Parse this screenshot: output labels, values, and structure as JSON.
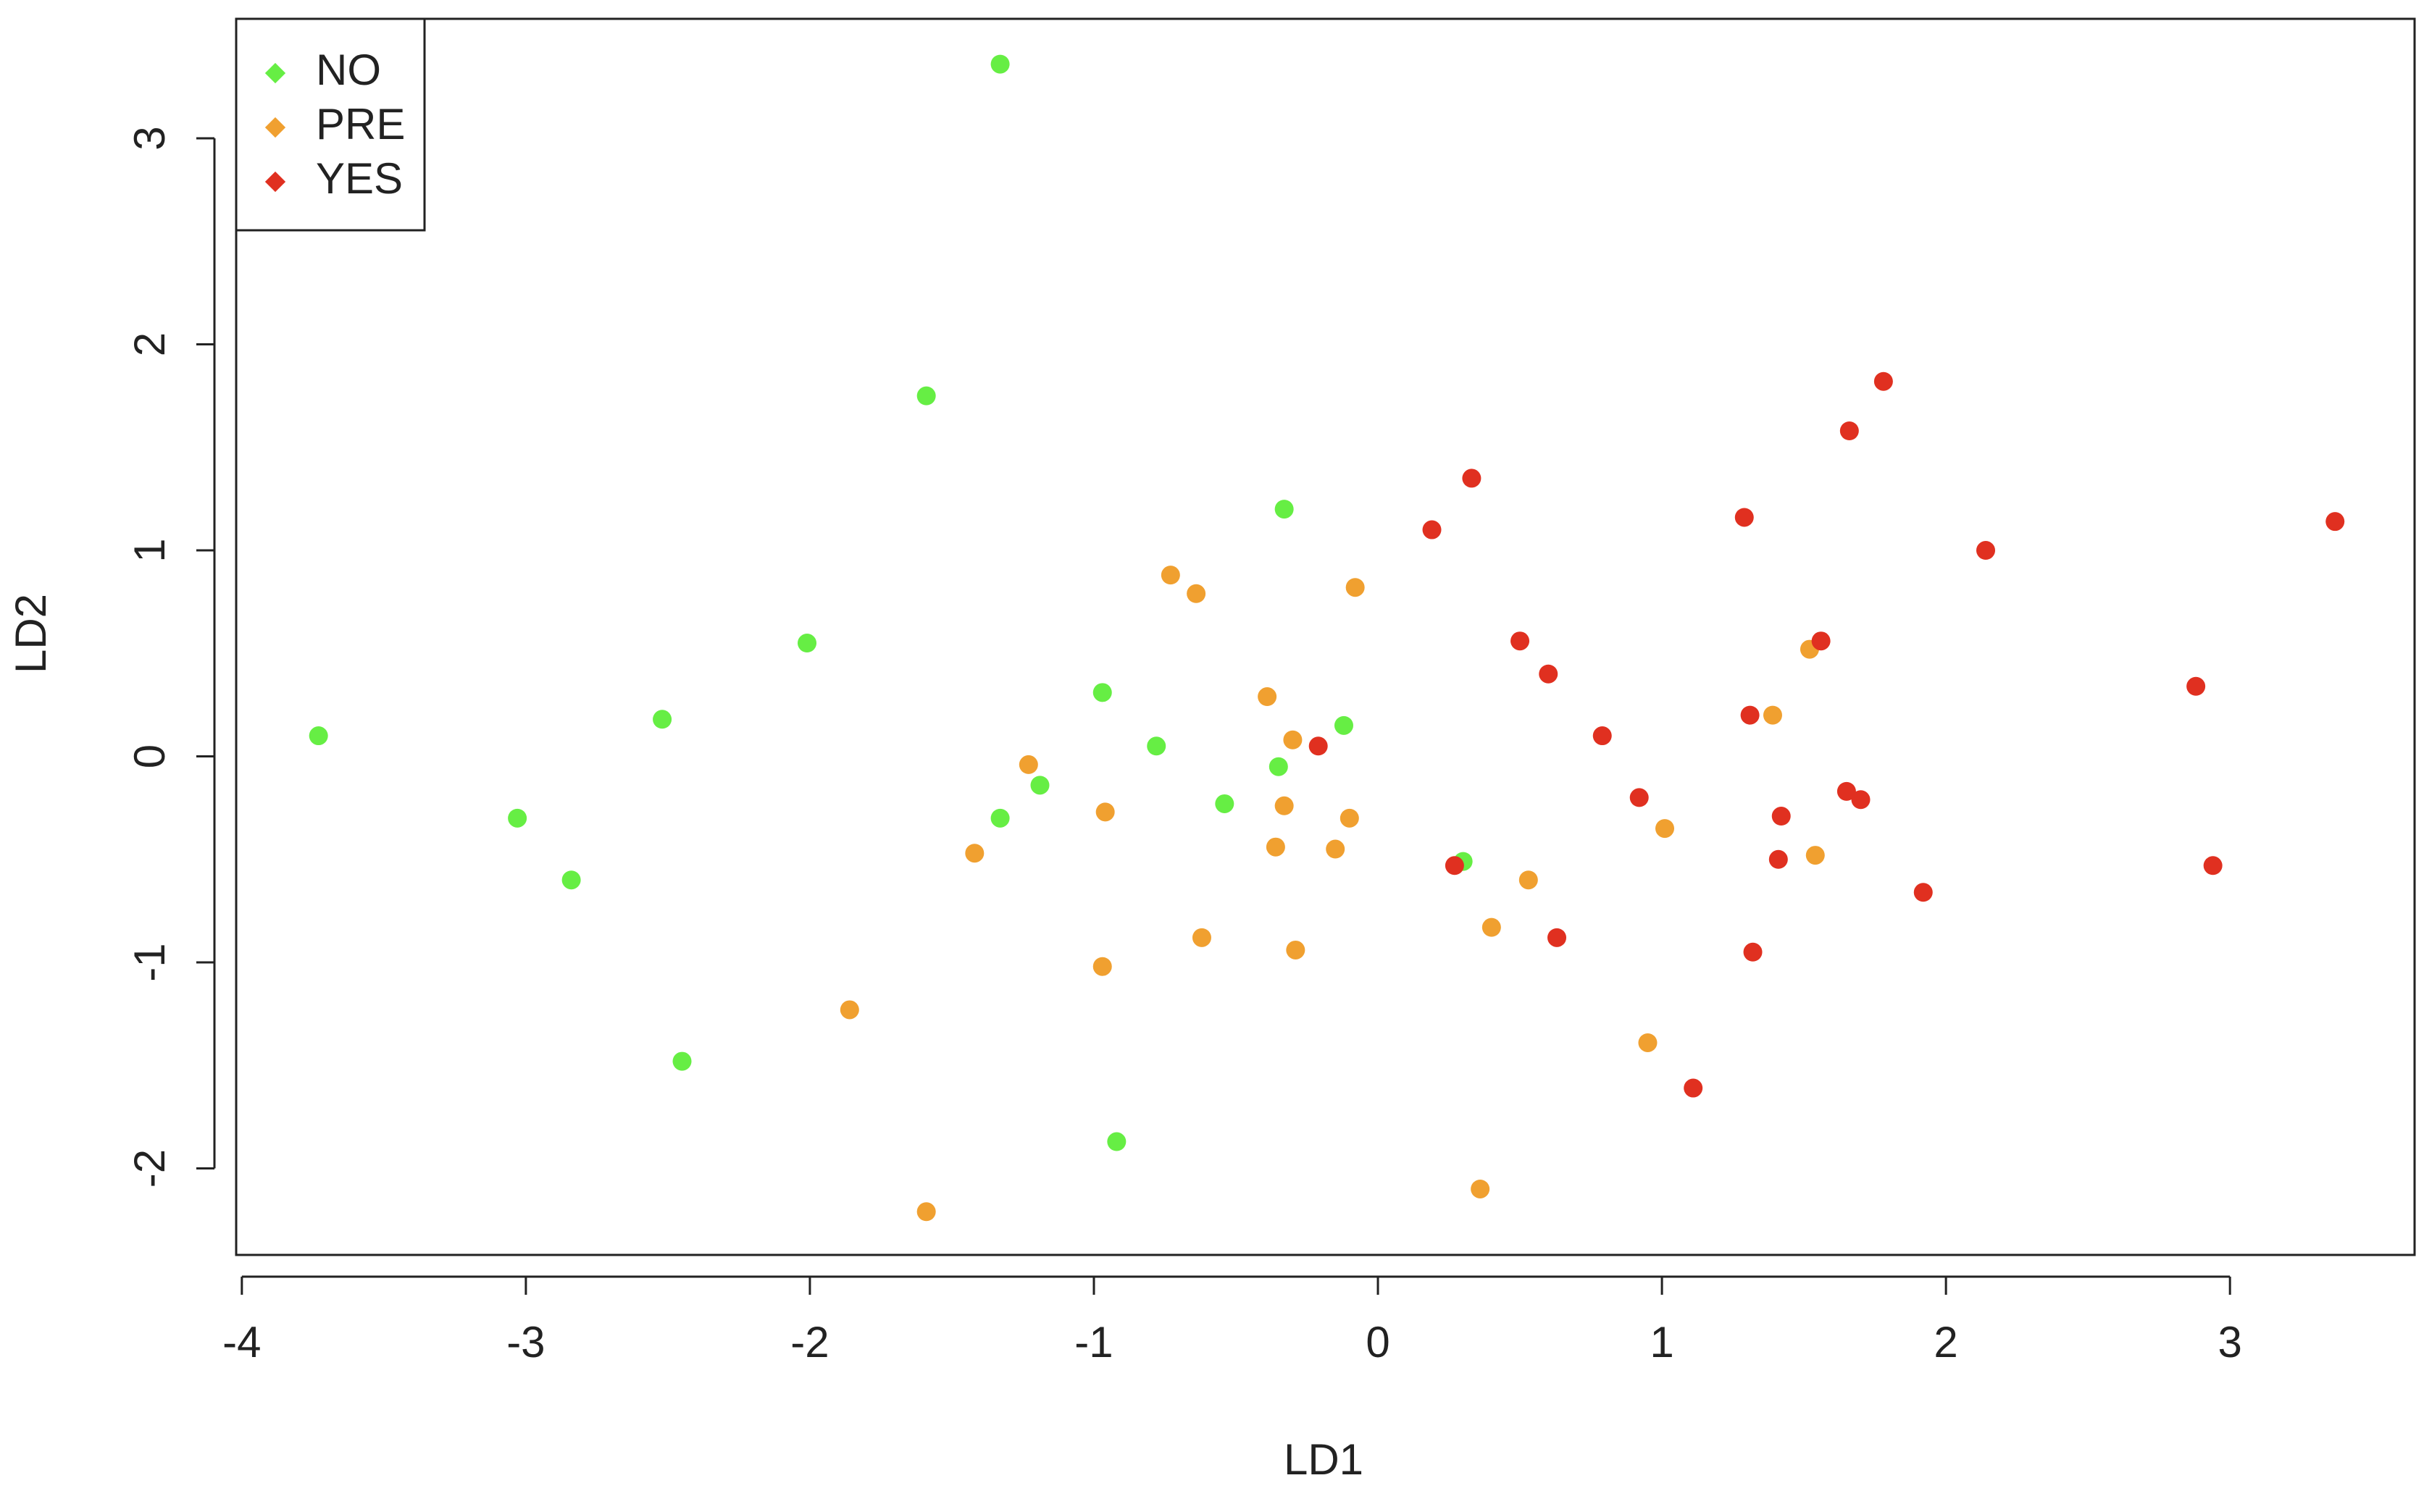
{
  "chart_data": {
    "type": "scatter",
    "x_label": "LD1",
    "y_label": "LD2",
    "xlim": [
      -4.02,
      3.65
    ],
    "ylim": [
      -2.42,
      3.58
    ],
    "xticks": [
      -4,
      -3,
      -2,
      -1,
      0,
      1,
      2,
      3
    ],
    "yticks": [
      -2,
      -1,
      0,
      1,
      2,
      3
    ],
    "legend": "top-left",
    "series": [
      {
        "name": "NO",
        "color": "#66ee44",
        "x": [
          -1.33,
          -1.59,
          -0.33,
          -2.01,
          -2.52,
          -3.73,
          -0.97,
          -0.78,
          -0.12,
          -0.35,
          -1.19,
          -0.54,
          -1.33,
          -3.03,
          -2.84,
          0.3,
          -2.45,
          -0.92
        ],
        "values": [
          3.36,
          1.75,
          1.2,
          0.55,
          0.18,
          0.1,
          0.31,
          0.05,
          0.15,
          -0.05,
          -0.14,
          -0.23,
          -0.3,
          -0.3,
          -0.6,
          -0.51,
          -1.48,
          -1.87
        ]
      },
      {
        "name": "PRE",
        "color": "#f0a030",
        "x": [
          -0.73,
          -0.64,
          -0.08,
          -0.39,
          -0.3,
          -1.23,
          -0.96,
          -0.33,
          -0.1,
          -0.36,
          -0.15,
          -1.42,
          0.53,
          0.4,
          -0.62,
          -0.29,
          -0.97,
          -1.86,
          1.01,
          1.39,
          1.52,
          1.54,
          0.95,
          0.36,
          -1.59
        ],
        "values": [
          0.88,
          0.79,
          0.82,
          0.29,
          0.08,
          -0.04,
          -0.27,
          -0.24,
          -0.3,
          -0.44,
          -0.45,
          -0.47,
          -0.6,
          -0.83,
          -0.88,
          -0.94,
          -1.02,
          -1.23,
          -0.35,
          0.2,
          0.52,
          -0.48,
          -1.39,
          -2.1,
          -2.21
        ]
      },
      {
        "name": "YES",
        "color": "#e03020",
        "x": [
          1.78,
          1.66,
          0.33,
          1.29,
          0.19,
          2.14,
          3.37,
          0.5,
          1.56,
          0.6,
          2.88,
          1.31,
          0.79,
          -0.21,
          0.92,
          1.65,
          1.7,
          1.42,
          1.41,
          0.27,
          2.94,
          1.92,
          0.63,
          1.32,
          1.11
        ],
        "values": [
          1.82,
          1.58,
          1.35,
          1.16,
          1.1,
          1.0,
          1.14,
          0.56,
          0.56,
          0.4,
          0.34,
          0.2,
          0.1,
          0.05,
          -0.2,
          -0.17,
          -0.21,
          -0.29,
          -0.5,
          -0.53,
          -0.53,
          -0.66,
          -0.88,
          -0.95,
          -1.61
        ]
      }
    ]
  }
}
